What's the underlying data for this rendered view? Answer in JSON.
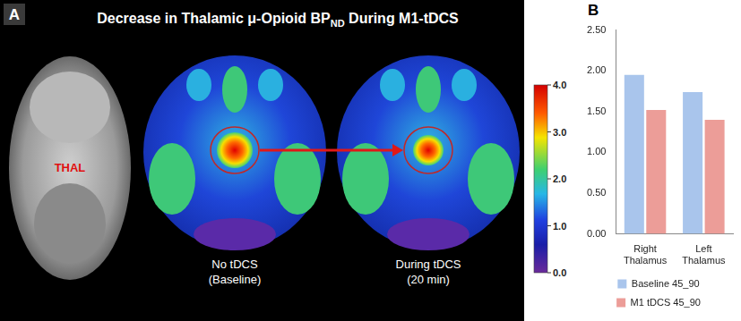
{
  "panel_a": {
    "letter": "A",
    "title_before": "Decrease in Thalamic μ-Opioid BP",
    "title_sub": "ND",
    "title_after": " During M1-tDCS",
    "structure_label": "THAL",
    "images": [
      {
        "label": [
          "No tDCS",
          "(Baseline)"
        ]
      },
      {
        "label": [
          "During tDCS",
          "(20 min)"
        ]
      }
    ],
    "colorbar": {
      "range": [
        0,
        4
      ],
      "ticks": [
        {
          "value": 0,
          "label": "0.0"
        },
        {
          "value": 1,
          "label": "1.0"
        },
        {
          "value": 2,
          "label": "2.0"
        },
        {
          "value": 3,
          "label": "3.0"
        },
        {
          "value": 4,
          "label": "4.0"
        }
      ]
    }
  },
  "panel_b_letter": "B",
  "chart_data": {
    "type": "bar",
    "categories": [
      "Right Thalamus",
      "Left Thalamus"
    ],
    "series": [
      {
        "name": "Baseline 45_90",
        "color": "#a9c5ec",
        "values": [
          1.95,
          1.74
        ]
      },
      {
        "name": "M1 tDCS 45_90",
        "color": "#ec9d98",
        "values": [
          1.52,
          1.4
        ]
      }
    ],
    "ylim": [
      0,
      2.5
    ],
    "yticks": [
      {
        "value": 0,
        "label": "0.00"
      },
      {
        "value": 0.5,
        "label": "0.50"
      },
      {
        "value": 1,
        "label": "1.00"
      },
      {
        "value": 1.5,
        "label": "1.50"
      },
      {
        "value": 2,
        "label": "2.00"
      },
      {
        "value": 2.5,
        "label": "2.50"
      }
    ],
    "grid": false,
    "legend": "bottom"
  }
}
